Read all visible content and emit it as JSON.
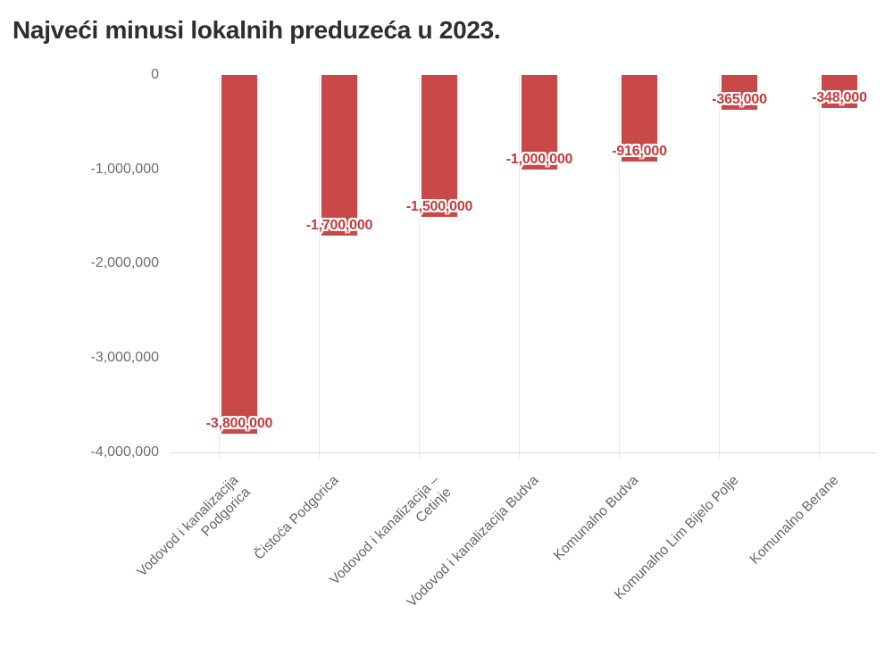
{
  "title": "Najveći minusi lokalnih preduzeća u 2023.",
  "chart_data": {
    "type": "bar",
    "title": "Najveći minusi lokalnih preduzeća u 2023.",
    "orientation": "vertical",
    "categories": [
      "Vodovod i kanalizacija\nPodgorica",
      "Čistoća Podgorica",
      "Vodovod i kanalizacija –\nCetinje",
      "Vodovod i kanalizacija Budva",
      "Komunalno Budva",
      "Komunalno Lim Bijelo Polje",
      "Komunalno Berane"
    ],
    "values": [
      -3800000,
      -1700000,
      -1500000,
      -1000000,
      -916000,
      -365000,
      -348000
    ],
    "value_labels": [
      "-3,800,000",
      "-1,700,000",
      "-1,500,000",
      "-1,000,000",
      "-916,000",
      "-365,000",
      "-348,000"
    ],
    "y_ticks": [
      0,
      -1000000,
      -2000000,
      -3000000,
      -4000000
    ],
    "y_tick_labels": [
      "0",
      "-1,000,000",
      "-2,000,000",
      "-3,000,000",
      "-4,000,000"
    ],
    "ylim": [
      -4000000,
      0
    ],
    "xlabel": "",
    "ylabel": "",
    "legend": "none",
    "grid": "vertical category gridlines + bottom axis line",
    "colors": {
      "bar": "#c94848",
      "value_label_text": "#c33b3b",
      "value_label_outline": "#ffffff",
      "axis_text": "#6e6e6e",
      "category_text": "#666666",
      "gridline": "#e9e9e9",
      "title_text": "#2e2e2e",
      "background": "#ffffff"
    }
  }
}
